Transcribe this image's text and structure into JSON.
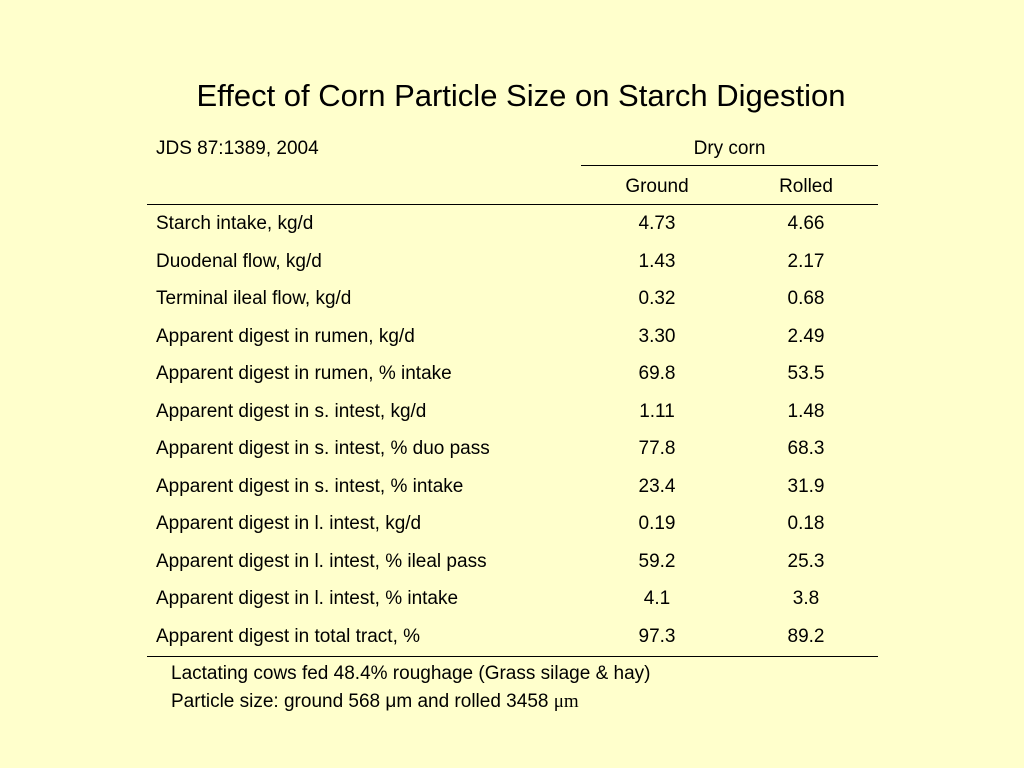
{
  "title": "Effect of Corn Particle Size on Starch Digestion",
  "citation": "JDS 87:1389, 2004",
  "table": {
    "group_header": "Dry corn",
    "columns": [
      "Ground",
      "Rolled"
    ],
    "rows": [
      {
        "label": "Starch intake, kg/d",
        "ground": "4.73",
        "rolled": "4.66"
      },
      {
        "label": "Duodenal flow, kg/d",
        "ground": "1.43",
        "rolled": "2.17"
      },
      {
        "label": "Terminal ileal flow, kg/d",
        "ground": "0.32",
        "rolled": "0.68"
      },
      {
        "label": "Apparent digest in rumen, kg/d",
        "ground": "3.30",
        "rolled": "2.49"
      },
      {
        "label": "Apparent digest in rumen, % intake",
        "ground": "69.8",
        "rolled": "53.5"
      },
      {
        "label": "Apparent digest in s. intest, kg/d",
        "ground": "1.11",
        "rolled": "1.48"
      },
      {
        "label": "Apparent digest in s. intest, % duo pass",
        "ground": "77.8",
        "rolled": "68.3"
      },
      {
        "label": "Apparent digest in s. intest, % intake",
        "ground": "23.4",
        "rolled": "31.9"
      },
      {
        "label": "Apparent digest in l. intest, kg/d",
        "ground": "0.19",
        "rolled": "0.18"
      },
      {
        "label": "Apparent digest in l. intest, % ileal pass",
        "ground": "59.2",
        "rolled": "25.3"
      },
      {
        "label": "Apparent digest in l. intest, % intake",
        "ground": "4.1",
        "rolled": "3.8"
      },
      {
        "label": "Apparent digest in total tract, %",
        "ground": "97.3",
        "rolled": "89.2"
      }
    ]
  },
  "notes": {
    "line1": "Lactating cows fed 48.4% roughage (Grass silage & hay)",
    "line2_text": "Particle size: ground 568 μm and rolled 3458 ",
    "line2_unit": "μm"
  }
}
